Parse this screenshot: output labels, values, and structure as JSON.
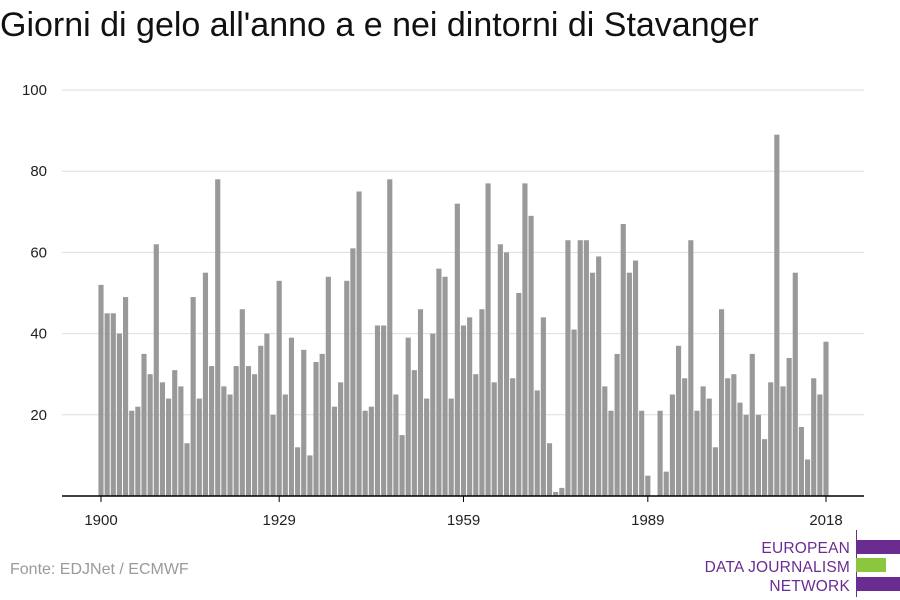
{
  "title": "Giorni di gelo all'anno a e nei dintorni di Stavanger",
  "source": "Fonte: EDJNet / ECMWF",
  "logo": {
    "lines": [
      "EUROPEAN",
      "DATA JOURNALISM",
      "NETWORK"
    ],
    "colors": {
      "purple": "#6b2c91",
      "green": "#8cc63f"
    }
  },
  "colors": {
    "bar": "#999999",
    "grid": "#dddddd",
    "axis": "#000000"
  },
  "chart_data": {
    "type": "bar",
    "title": "Giorni di gelo all'anno a e nei dintorni di Stavanger",
    "xlabel": "",
    "ylabel": "",
    "x_start": 1900,
    "x_end": 2018,
    "ylim": [
      0,
      100
    ],
    "y_ticks": [
      20,
      40,
      60,
      80,
      100
    ],
    "x_ticks": [
      1900,
      1929,
      1959,
      1989,
      2018
    ],
    "grid": true,
    "values": [
      52,
      45,
      45,
      40,
      49,
      21,
      22,
      35,
      30,
      62,
      28,
      24,
      31,
      27,
      13,
      49,
      24,
      55,
      32,
      78,
      27,
      25,
      32,
      46,
      32,
      30,
      37,
      40,
      20,
      53,
      25,
      39,
      12,
      36,
      10,
      33,
      35,
      54,
      22,
      28,
      53,
      61,
      75,
      21,
      22,
      42,
      42,
      78,
      25,
      15,
      39,
      31,
      46,
      24,
      40,
      56,
      54,
      24,
      72,
      42,
      44,
      30,
      46,
      77,
      28,
      62,
      60,
      29,
      50,
      77,
      69,
      26,
      44,
      13,
      1,
      2,
      63,
      41,
      63,
      63,
      55,
      59,
      27,
      21,
      35,
      67,
      55,
      58,
      21,
      5,
      0,
      21,
      6,
      25,
      37,
      29,
      63,
      21,
      27,
      24,
      12,
      46,
      29,
      30,
      23,
      20,
      35,
      20,
      14,
      28,
      89,
      27,
      34,
      55,
      17,
      9,
      29,
      25,
      38
    ]
  }
}
